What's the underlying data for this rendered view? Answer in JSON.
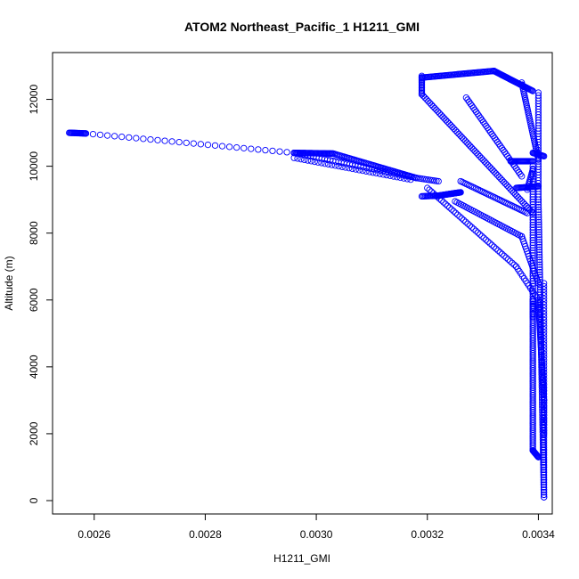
{
  "chart_data": {
    "type": "scatter",
    "title": "ATOM2 Northeast_Pacific_1 H1211_GMI",
    "xlabel": "H1211_GMI",
    "ylabel": "Altitude (m)",
    "xlim": [
      0.002525,
      0.003425
    ],
    "ylim": [
      -400,
      13400
    ],
    "xticks": [
      0.0026,
      0.0028,
      0.003,
      0.0032,
      0.0034
    ],
    "xtick_labels": [
      "0.0026",
      "0.0028",
      "0.0030",
      "0.0032",
      "0.0034"
    ],
    "yticks": [
      0,
      2000,
      4000,
      6000,
      8000,
      10000,
      12000
    ],
    "ytick_labels": [
      "0",
      "2000",
      "4000",
      "6000",
      "8000",
      "10000",
      "12000"
    ],
    "marker": "open-circle",
    "marker_color": "#0000ff",
    "grid": false,
    "legend": "none",
    "segments": [
      {
        "from": [
          0.002555,
          11000
        ],
        "to": [
          0.002585,
          10980
        ],
        "n": 20
      },
      {
        "from": [
          0.002585,
          10980
        ],
        "to": [
          0.00296,
          10400
        ],
        "n": 30
      },
      {
        "from": [
          0.00296,
          10400
        ],
        "to": [
          0.00318,
          9650
        ],
        "n": 45
      },
      {
        "from": [
          0.00296,
          10250
        ],
        "to": [
          0.00317,
          9600
        ],
        "n": 35
      },
      {
        "from": [
          0.00296,
          10400
        ],
        "to": [
          0.00303,
          10380
        ],
        "n": 40
      },
      {
        "from": [
          0.00303,
          10380
        ],
        "to": [
          0.00318,
          9650
        ],
        "n": 60
      },
      {
        "from": [
          0.00318,
          9650
        ],
        "to": [
          0.00322,
          9550
        ],
        "n": 12
      },
      {
        "from": [
          0.00319,
          9100
        ],
        "to": [
          0.00322,
          9120
        ],
        "n": 15
      },
      {
        "from": [
          0.00322,
          9120
        ],
        "to": [
          0.00326,
          9220
        ],
        "n": 40
      },
      {
        "from": [
          0.00326,
          9550
        ],
        "to": [
          0.00338,
          8600
        ],
        "n": 40
      },
      {
        "from": [
          0.00325,
          8950
        ],
        "to": [
          0.00337,
          7900
        ],
        "n": 35
      },
      {
        "from": [
          0.00337,
          7900
        ],
        "to": [
          0.0034,
          6500
        ],
        "n": 20
      },
      {
        "from": [
          0.0032,
          9350
        ],
        "to": [
          0.00336,
          7000
        ],
        "n": 45
      },
      {
        "from": [
          0.00336,
          7000
        ],
        "to": [
          0.0034,
          6000
        ],
        "n": 15
      },
      {
        "from": [
          0.00319,
          12650
        ],
        "to": [
          0.00332,
          12850
        ],
        "n": 60
      },
      {
        "from": [
          0.00332,
          12850
        ],
        "to": [
          0.00339,
          12250
        ],
        "n": 45
      },
      {
        "from": [
          0.00319,
          12700
        ],
        "to": [
          0.00319,
          12150
        ],
        "n": 15
      },
      {
        "from": [
          0.00319,
          12150
        ],
        "to": [
          0.00339,
          8600
        ],
        "n": 70
      },
      {
        "from": [
          0.00327,
          12050
        ],
        "to": [
          0.00337,
          9700
        ],
        "n": 40
      },
      {
        "from": [
          0.00337,
          12500
        ],
        "to": [
          0.0034,
          10200
        ],
        "n": 40
      },
      {
        "from": [
          0.0034,
          12200
        ],
        "to": [
          0.0034,
          9000
        ],
        "n": 40
      },
      {
        "from": [
          0.00335,
          10150
        ],
        "to": [
          0.00339,
          10150
        ],
        "n": 25
      },
      {
        "from": [
          0.00336,
          9350
        ],
        "to": [
          0.0034,
          9400
        ],
        "n": 25
      },
      {
        "from": [
          0.00339,
          10400
        ],
        "to": [
          0.00341,
          10300
        ],
        "n": 15
      },
      {
        "from": [
          0.00338,
          9300
        ],
        "to": [
          0.00339,
          9900
        ],
        "n": 12
      },
      {
        "from": [
          0.00339,
          10000
        ],
        "to": [
          0.00339,
          5500
        ],
        "n": 60
      },
      {
        "from": [
          0.0034,
          9000
        ],
        "to": [
          0.00341,
          100
        ],
        "n": 120
      },
      {
        "from": [
          0.00339,
          6000
        ],
        "to": [
          0.00339,
          1500
        ],
        "n": 80
      },
      {
        "from": [
          0.00339,
          1500
        ],
        "to": [
          0.0034,
          1300
        ],
        "n": 15
      },
      {
        "from": [
          0.0034,
          6000
        ],
        "to": [
          0.00341,
          3000
        ],
        "n": 60
      },
      {
        "from": [
          0.00341,
          6500
        ],
        "to": [
          0.00341,
          2000
        ],
        "n": 50
      },
      {
        "from": [
          0.00341,
          3000
        ],
        "to": [
          0.00341,
          100
        ],
        "n": 40
      }
    ]
  }
}
